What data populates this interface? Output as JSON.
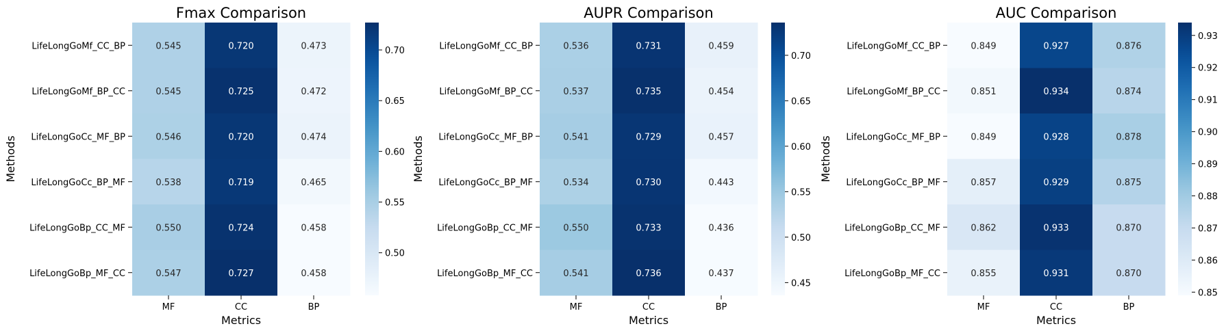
{
  "chart_data": [
    {
      "type": "heatmap",
      "title": "Fmax Comparison",
      "xlabel": "Metrics",
      "ylabel": "Methods",
      "columns": [
        "MF",
        "CC",
        "BP"
      ],
      "rows": [
        "LifeLongGoMf_CC_BP",
        "LifeLongGoMf_BP_CC",
        "LifeLongGoCc_MF_BP",
        "LifeLongGoCc_BP_MF",
        "LifeLongGoBp_CC_MF",
        "LifeLongGoBp_MF_CC"
      ],
      "values": [
        [
          0.545,
          0.72,
          0.473
        ],
        [
          0.545,
          0.725,
          0.472
        ],
        [
          0.546,
          0.72,
          0.474
        ],
        [
          0.538,
          0.719,
          0.465
        ],
        [
          0.55,
          0.724,
          0.458
        ],
        [
          0.547,
          0.727,
          0.458
        ]
      ],
      "colorbar": {
        "min": 0.458,
        "max": 0.727,
        "ticks": [
          0.5,
          0.55,
          0.6,
          0.65,
          0.7
        ],
        "tick_labels": [
          "0.50",
          "0.55",
          "0.60",
          "0.65",
          "0.70"
        ]
      },
      "colormap": "Blues"
    },
    {
      "type": "heatmap",
      "title": "AUPR Comparison",
      "xlabel": "Metrics",
      "ylabel": "Methods",
      "columns": [
        "MF",
        "CC",
        "BP"
      ],
      "rows": [
        "LifeLongGoMf_CC_BP",
        "LifeLongGoMf_BP_CC",
        "LifeLongGoCc_MF_BP",
        "LifeLongGoCc_BP_MF",
        "LifeLongGoBp_CC_MF",
        "LifeLongGoBp_MF_CC"
      ],
      "values": [
        [
          0.536,
          0.731,
          0.459
        ],
        [
          0.537,
          0.735,
          0.454
        ],
        [
          0.541,
          0.729,
          0.457
        ],
        [
          0.534,
          0.73,
          0.443
        ],
        [
          0.55,
          0.733,
          0.436
        ],
        [
          0.541,
          0.736,
          0.437
        ]
      ],
      "colorbar": {
        "min": 0.436,
        "max": 0.736,
        "ticks": [
          0.45,
          0.5,
          0.55,
          0.6,
          0.65,
          0.7
        ],
        "tick_labels": [
          "0.45",
          "0.50",
          "0.55",
          "0.60",
          "0.65",
          "0.70"
        ]
      },
      "colormap": "Blues"
    },
    {
      "type": "heatmap",
      "title": "AUC Comparison",
      "xlabel": "Metrics",
      "ylabel": "Methods",
      "columns": [
        "MF",
        "CC",
        "BP"
      ],
      "rows": [
        "LifeLongGoMf_CC_BP",
        "LifeLongGoMf_BP_CC",
        "LifeLongGoCc_MF_BP",
        "LifeLongGoCc_BP_MF",
        "LifeLongGoBp_CC_MF",
        "LifeLongGoBp_MF_CC"
      ],
      "values": [
        [
          0.849,
          0.927,
          0.876
        ],
        [
          0.851,
          0.934,
          0.874
        ],
        [
          0.849,
          0.928,
          0.878
        ],
        [
          0.857,
          0.929,
          0.875
        ],
        [
          0.862,
          0.933,
          0.87
        ],
        [
          0.855,
          0.931,
          0.87
        ]
      ],
      "colorbar": {
        "min": 0.849,
        "max": 0.934,
        "ticks": [
          0.85,
          0.86,
          0.87,
          0.88,
          0.89,
          0.9,
          0.91,
          0.92,
          0.93
        ],
        "tick_labels": [
          "0.85",
          "0.86",
          "0.87",
          "0.88",
          "0.89",
          "0.90",
          "0.91",
          "0.92",
          "0.93"
        ]
      },
      "colormap": "Blues"
    }
  ],
  "colors": {
    "blues_scale": [
      "#f7fbff",
      "#deebf7",
      "#c6dbef",
      "#9ecae1",
      "#6baed6",
      "#4292c6",
      "#2171b5",
      "#08519c",
      "#08306b"
    ],
    "text_dark": "#262626",
    "text_light": "#ffffff"
  }
}
